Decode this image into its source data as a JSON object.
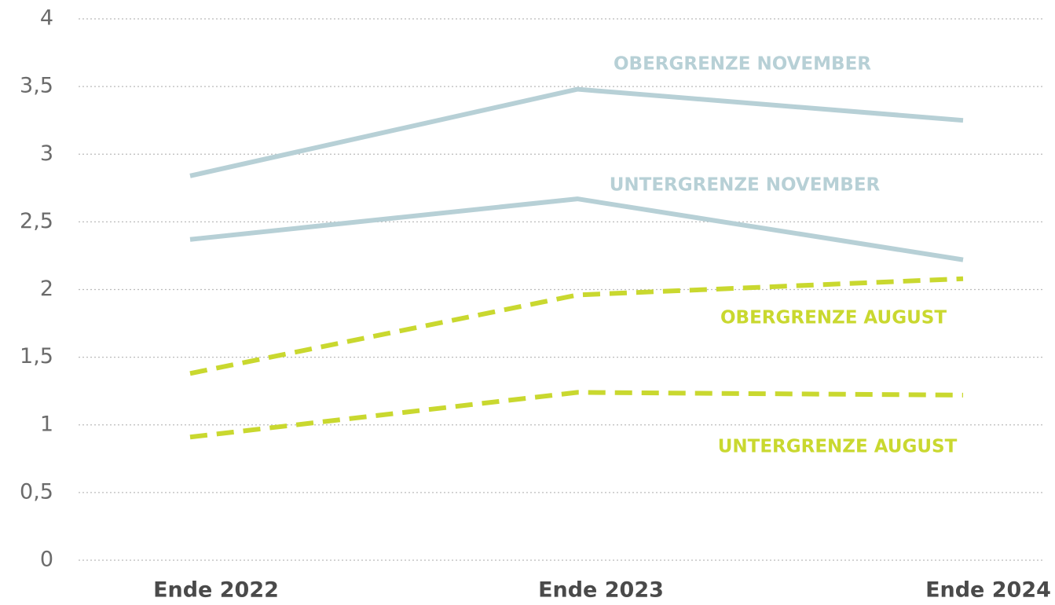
{
  "chart_data": {
    "type": "line",
    "categories": [
      "Ende 2022",
      "Ende 2023",
      "Ende 2024"
    ],
    "series": [
      {
        "name": "OBERGRENZE NOVEMBER",
        "color": "#b7d0d6",
        "style": "solid",
        "values": [
          2.84,
          3.48,
          3.25
        ]
      },
      {
        "name": "UNTERGRENZE NOVEMBER",
        "color": "#b7d0d6",
        "style": "solid",
        "values": [
          2.37,
          2.67,
          2.22
        ]
      },
      {
        "name": "OBERGRENZE AUGUST",
        "color": "#c9d82f",
        "style": "dashed",
        "values": [
          1.38,
          1.96,
          2.08
        ]
      },
      {
        "name": "UNTERGRENZE AUGUST",
        "color": "#c9d82f",
        "style": "dashed",
        "values": [
          0.91,
          1.24,
          1.22
        ]
      }
    ],
    "ylim": [
      0,
      4
    ],
    "yticks": [
      0,
      {
        "value": 0.5,
        "label": "0,5"
      },
      1,
      {
        "value": 1.5,
        "label": "1,5"
      },
      2,
      {
        "value": 2.5,
        "label": "2,5"
      },
      3,
      {
        "value": 3.5,
        "label": "3,5"
      },
      4
    ],
    "grid": true
  }
}
